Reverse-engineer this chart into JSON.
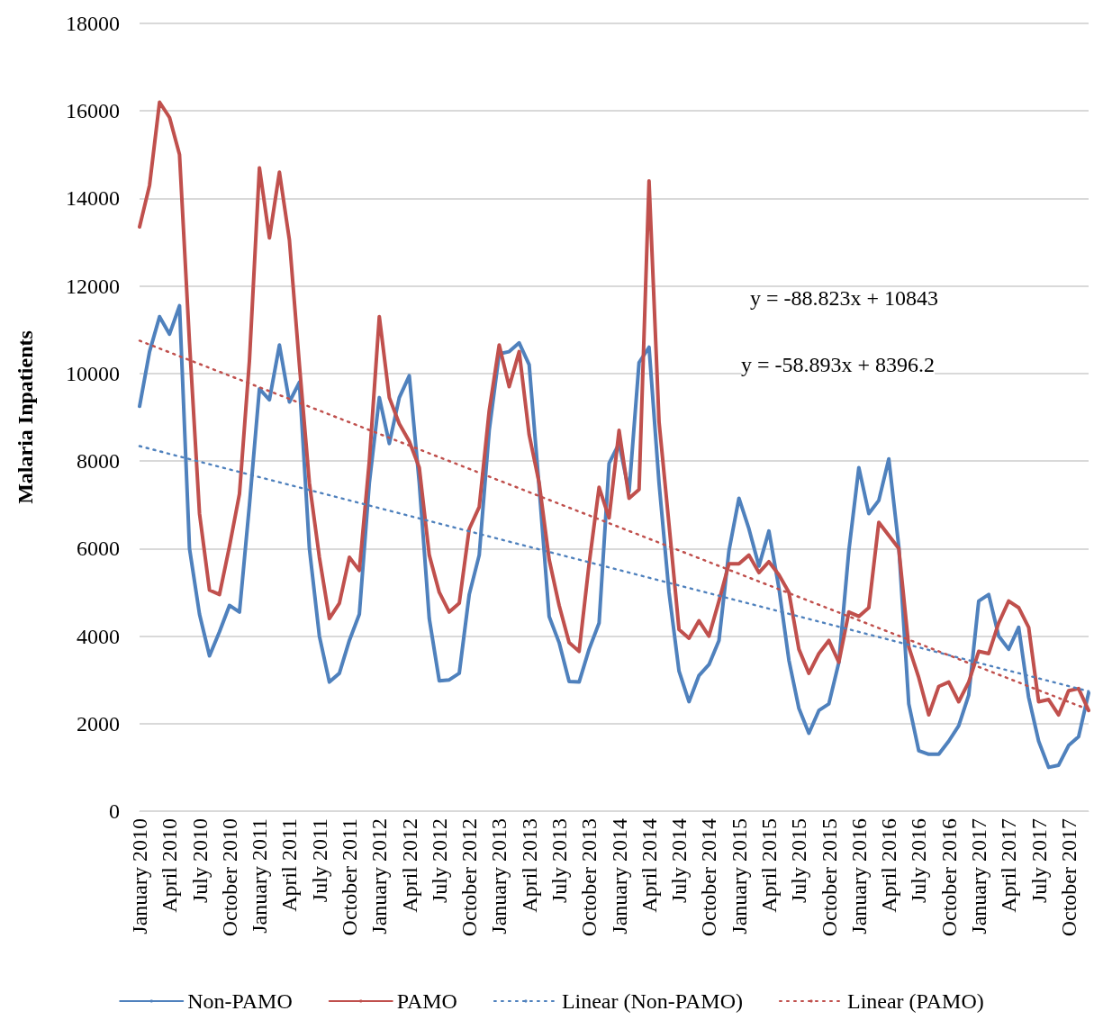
{
  "chart_data": {
    "type": "line",
    "ylabel": "Malaria Inpatients",
    "ylim": [
      0,
      18000
    ],
    "yticks": [
      0,
      2000,
      4000,
      6000,
      8000,
      10000,
      12000,
      14000,
      16000,
      18000
    ],
    "grid": "y",
    "legend": "bottom",
    "marker": "none",
    "categories": [
      "January 2010",
      null,
      null,
      "April 2010",
      null,
      null,
      "July 2010",
      null,
      null,
      "October 2010",
      null,
      null,
      "January 2011",
      null,
      null,
      "April 2011",
      null,
      null,
      "July 2011",
      null,
      null,
      "October 2011",
      null,
      null,
      "January 2012",
      null,
      null,
      "April 2012",
      null,
      null,
      "July 2012",
      null,
      null,
      "October 2012",
      null,
      null,
      "January 2013",
      null,
      null,
      "April 2013",
      null,
      null,
      "July 2013",
      null,
      null,
      "October 2013",
      null,
      null,
      "January 2014",
      null,
      null,
      "April 2014",
      null,
      null,
      "July 2014",
      null,
      null,
      "October 2014",
      null,
      null,
      "January 2015",
      null,
      null,
      "April 2015",
      null,
      null,
      "July 2015",
      null,
      null,
      "October 2015",
      null,
      null,
      "January 2016",
      null,
      null,
      "April 2016",
      null,
      null,
      "July 2016",
      null,
      null,
      "October 2016",
      null,
      null,
      "January 2017",
      null,
      null,
      "April 2017",
      null,
      null,
      "July 2017",
      null,
      null,
      "October 2017",
      null,
      null
    ],
    "series": [
      {
        "name": "Non-PAMO",
        "color": "#4f81bd",
        "line_style": "solid",
        "values": [
          9250,
          10500,
          11300,
          10900,
          11550,
          6000,
          4500,
          3550,
          4100,
          4700,
          4550,
          7000,
          9650,
          9400,
          10650,
          9350,
          9800,
          6000,
          4000,
          2950,
          3150,
          3900,
          4500,
          7500,
          9450,
          8400,
          9450,
          9950,
          7500,
          4400,
          2980,
          3000,
          3150,
          4950,
          5850,
          8700,
          10450,
          10500,
          10700,
          10200,
          7400,
          4450,
          3850,
          2960,
          2950,
          3700,
          4300,
          7950,
          8400,
          7300,
          10250,
          10600,
          7500,
          5000,
          3200,
          2500,
          3100,
          3350,
          3900,
          5950,
          7150,
          6450,
          5600,
          6400,
          5100,
          3450,
          2350,
          1780,
          2300,
          2450,
          3400,
          5950,
          7850,
          6800,
          7100,
          8050,
          6050,
          2450,
          1380,
          1300,
          1300,
          1600,
          1950,
          2650,
          4800,
          4950,
          4000,
          3700,
          4200,
          2600,
          1600,
          1000,
          1050,
          1500,
          1700,
          2700
        ]
      },
      {
        "name": "PAMO",
        "color": "#c0504d",
        "line_style": "solid",
        "values": [
          13350,
          14300,
          16200,
          15850,
          15000,
          10700,
          6800,
          5050,
          4950,
          6050,
          7250,
          10300,
          14700,
          13100,
          14600,
          13050,
          10200,
          7500,
          5800,
          4400,
          4750,
          5800,
          5500,
          8000,
          11300,
          9450,
          8850,
          8450,
          7850,
          5850,
          5000,
          4550,
          4750,
          6450,
          6950,
          9150,
          10650,
          9700,
          10500,
          8600,
          7500,
          5750,
          4700,
          3850,
          3650,
          5650,
          7400,
          6700,
          8700,
          7150,
          7350,
          14400,
          8900,
          6550,
          4150,
          3950,
          4350,
          4000,
          4800,
          5650,
          5650,
          5850,
          5450,
          5700,
          5400,
          5000,
          3700,
          3150,
          3600,
          3900,
          3400,
          4550,
          4450,
          4650,
          6600,
          6300,
          6000,
          3750,
          3050,
          2200,
          2850,
          2950,
          2500,
          2950,
          3650,
          3600,
          4300,
          4800,
          4650,
          4200,
          2500,
          2550,
          2200,
          2750,
          2800,
          2300
        ]
      },
      {
        "name": "Linear (Non-PAMO)",
        "color": "#4f81bd",
        "line_style": "dotted",
        "values": [
          8340,
          null,
          null,
          null,
          null,
          null,
          null,
          null,
          null,
          null,
          null,
          null,
          null,
          null,
          null,
          null,
          null,
          null,
          null,
          null,
          null,
          null,
          null,
          null,
          null,
          null,
          null,
          null,
          null,
          null,
          null,
          null,
          null,
          null,
          null,
          null,
          null,
          null,
          null,
          null,
          null,
          null,
          null,
          null,
          null,
          null,
          null,
          null,
          null,
          null,
          null,
          null,
          null,
          null,
          null,
          null,
          null,
          null,
          null,
          null,
          null,
          null,
          null,
          null,
          null,
          null,
          null,
          null,
          null,
          null,
          null,
          null,
          null,
          null,
          null,
          null,
          null,
          null,
          null,
          null,
          null,
          null,
          null,
          null,
          null,
          null,
          null,
          null,
          null,
          null,
          null,
          null,
          null,
          null,
          null,
          2740
        ]
      },
      {
        "name": "Linear (PAMO)",
        "color": "#c0504d",
        "line_style": "dotted",
        "values": [
          10750,
          null,
          null,
          null,
          null,
          null,
          null,
          null,
          null,
          null,
          null,
          null,
          null,
          null,
          null,
          null,
          null,
          null,
          null,
          null,
          null,
          null,
          null,
          null,
          null,
          null,
          null,
          null,
          null,
          null,
          null,
          null,
          null,
          null,
          null,
          null,
          null,
          null,
          null,
          null,
          null,
          null,
          null,
          null,
          null,
          null,
          null,
          null,
          null,
          null,
          null,
          null,
          null,
          null,
          null,
          null,
          null,
          null,
          null,
          null,
          null,
          null,
          null,
          null,
          null,
          null,
          null,
          null,
          null,
          null,
          null,
          null,
          null,
          null,
          null,
          null,
          null,
          null,
          null,
          null,
          null,
          null,
          null,
          null,
          null,
          null,
          null,
          null,
          null,
          null,
          null,
          null,
          null,
          null,
          null,
          2320
        ]
      }
    ],
    "annotations": [
      "y = -88.823x + 10843",
      "y = -58.893x + 8396.2"
    ]
  }
}
